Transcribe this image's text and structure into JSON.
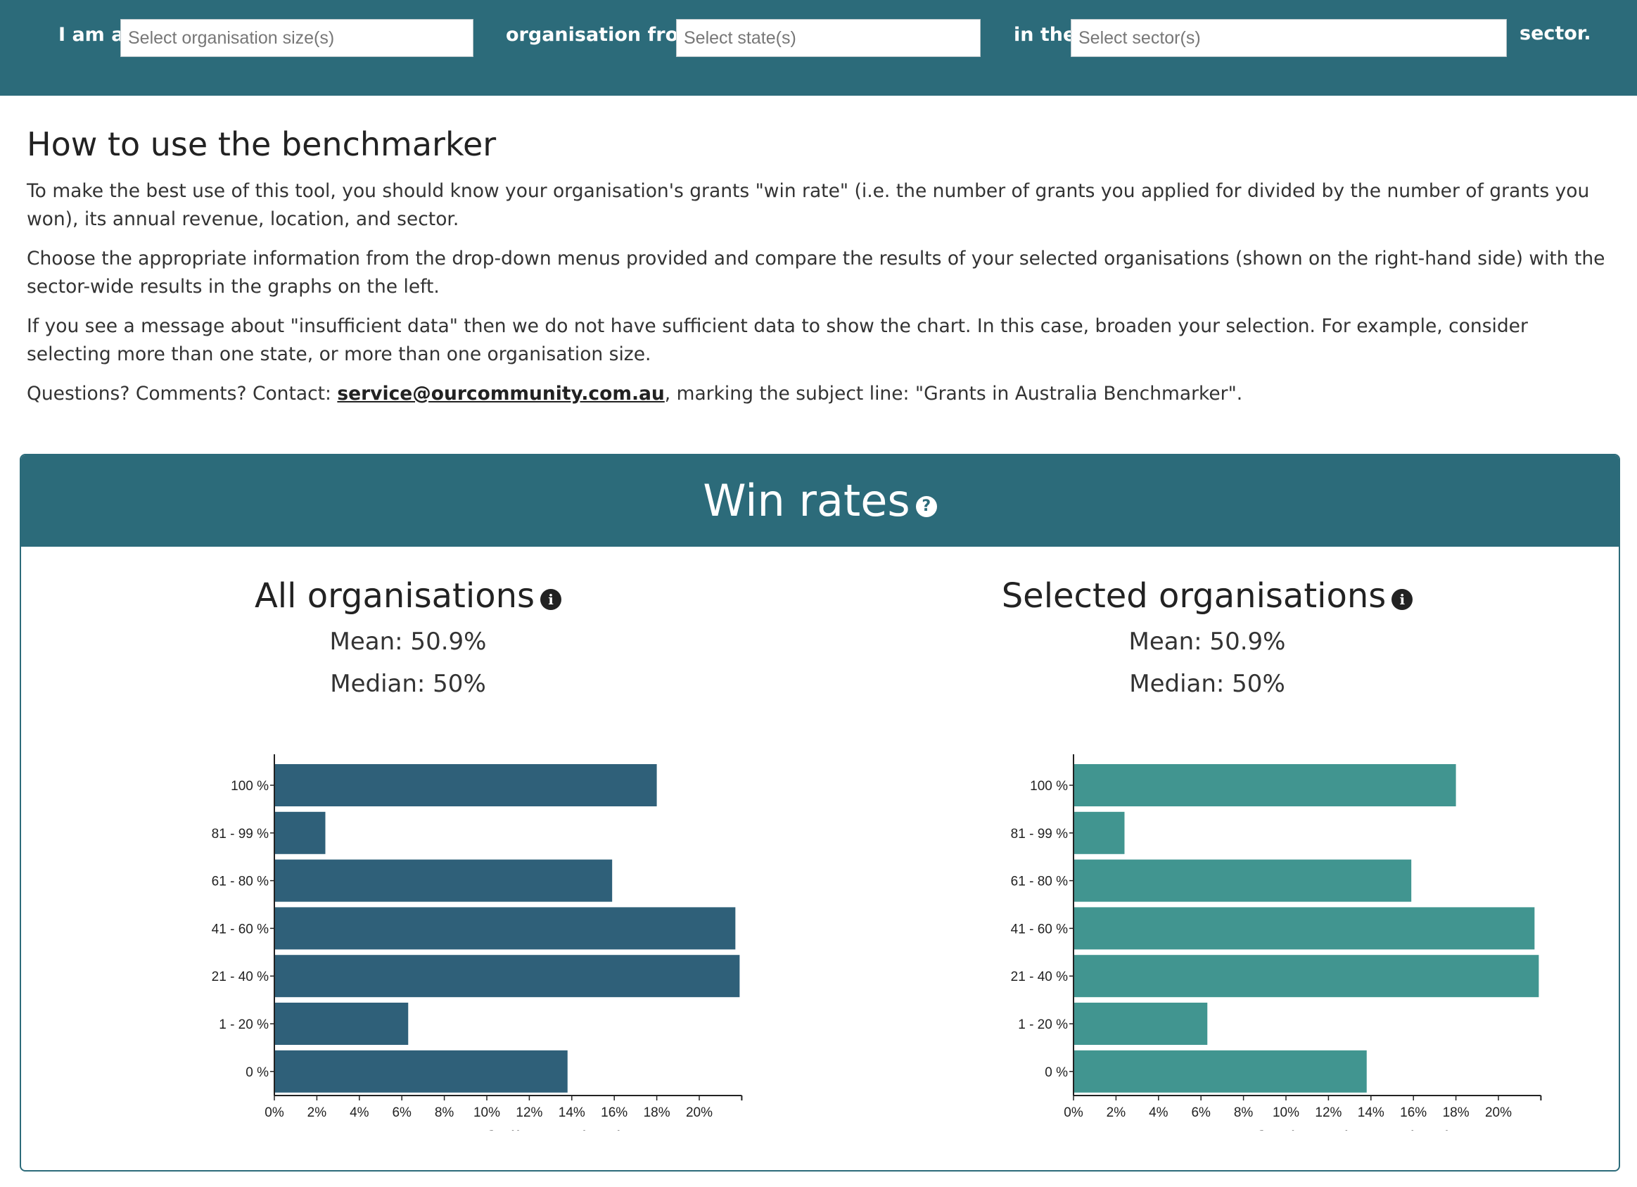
{
  "filters": {
    "label_i_am_a": "I am a",
    "size_placeholder": "Select organisation size(s)",
    "label_org_from": "organisation from",
    "state_placeholder": "Select state(s)",
    "label_in_the": "in the",
    "sector_placeholder": "Select sector(s)",
    "label_sector": "sector."
  },
  "howto": {
    "heading": "How to use the benchmarker",
    "p1": "To make the best use of this tool, you should know your organisation's grants \"win rate\" (i.e. the number of grants you applied for divided by the number of grants you won), its annual revenue, location, and sector.",
    "p2": "Choose the appropriate information from the drop-down menus provided and compare the results of your selected organisations (shown on the right-hand side) with the sector-wide results in the graphs on the left.",
    "p3": "If you see a message about \"insufficient data\" then we do not have sufficient data to show the chart. In this case, broaden your selection. For example, consider selecting more than one state, or more than one organisation size.",
    "p4_before": "Questions? Comments? Contact: ",
    "p4_email": "service@ourcommunity.com.au",
    "p4_after": ", marking the subject line: \"Grants in Australia Benchmarker\"."
  },
  "panel": {
    "title": "Win rates",
    "help_icon": "question-circle-icon"
  },
  "charts": {
    "all": {
      "title": "All organisations",
      "mean": "Mean: 50.9%",
      "median": "Median: 50%",
      "info_icon": "info-circle-icon"
    },
    "selected": {
      "title": "Selected organisations",
      "mean": "Mean: 50.9%",
      "median": "Median: 50%",
      "info_icon": "info-circle-icon"
    }
  },
  "chart_data": [
    {
      "type": "bar",
      "orientation": "horizontal",
      "categories": [
        "100 %",
        "81 - 99 %",
        "61 - 80 %",
        "41 - 60 %",
        "21 - 40 %",
        "1 - 20 %",
        "0 %"
      ],
      "values": [
        18.0,
        2.4,
        15.9,
        21.7,
        21.9,
        6.3,
        13.8
      ],
      "xlabel": "Percentage of all organisations",
      "x_ticks": [
        "0%",
        "2%",
        "4%",
        "6%",
        "8%",
        "10%",
        "12%",
        "14%",
        "16%",
        "18%",
        "20%"
      ],
      "xlim": [
        0,
        22
      ],
      "color": "#2f6079"
    },
    {
      "type": "bar",
      "orientation": "horizontal",
      "categories": [
        "100 %",
        "81 - 99 %",
        "61 - 80 %",
        "41 - 60 %",
        "21 - 40 %",
        "1 - 20 %",
        "0 %"
      ],
      "values": [
        18.0,
        2.4,
        15.9,
        21.7,
        21.9,
        6.3,
        13.8
      ],
      "xlabel": "Percentage of selected organisations",
      "x_ticks": [
        "0%",
        "2%",
        "4%",
        "6%",
        "8%",
        "10%",
        "12%",
        "14%",
        "16%",
        "18%",
        "20%"
      ],
      "xlim": [
        0,
        22
      ],
      "color": "#419590"
    }
  ]
}
